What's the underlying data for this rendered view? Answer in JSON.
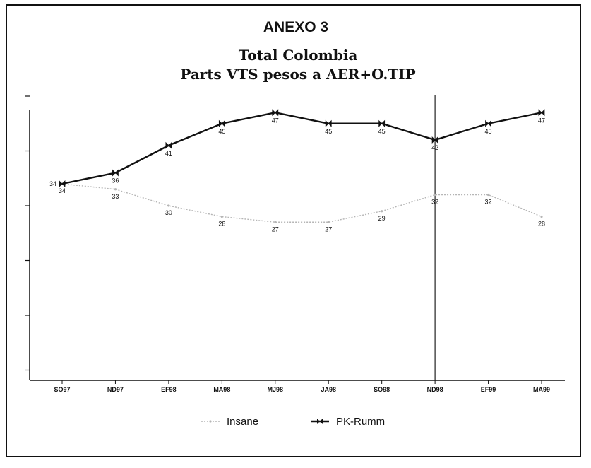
{
  "heading": "ANEXO 3",
  "chart_data": {
    "type": "line",
    "title": "Total Colombia",
    "subtitle": "Parts VTS pesos a AER+O.TIP",
    "xlabel": "",
    "ylabel": "",
    "categories": [
      "SO97",
      "ND97",
      "EF98",
      "MA98",
      "MJ98",
      "JA98",
      "SO98",
      "ND98",
      "EF99",
      "MA99"
    ],
    "ylim": [
      0,
      50
    ],
    "y_tick_labels_shown": false,
    "vertical_marker_at": "ND98",
    "legend_position": "bottom",
    "series": [
      {
        "name": "Insane",
        "values": [
          34,
          33,
          30,
          28,
          27,
          27,
          29,
          32,
          32,
          28
        ],
        "color": "#b5b5b5"
      },
      {
        "name": "PK-Rumm",
        "values": [
          34,
          36,
          41,
          45,
          47,
          45,
          45,
          42,
          45,
          47
        ],
        "color": "#111111"
      }
    ]
  }
}
